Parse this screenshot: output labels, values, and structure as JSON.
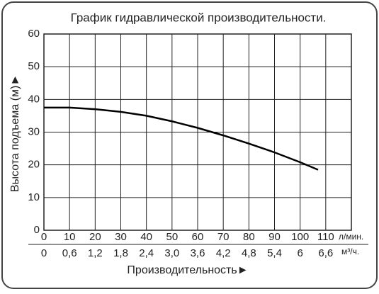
{
  "chart_data": {
    "type": "line",
    "title": "График гидравлической производительности.",
    "y_label": "Высота подъема (м)►",
    "x_label": "Производительность►",
    "x_unit": "л/мин.",
    "x2_unit": "м³/ч.",
    "xlim": [
      0,
      120
    ],
    "ylim": [
      0,
      60
    ],
    "xticks": [
      0,
      10,
      20,
      30,
      40,
      50,
      60,
      70,
      80,
      90,
      100,
      110
    ],
    "x2ticks": [
      0,
      {
        "value": 0.6,
        "label": "0,6"
      },
      {
        "value": 1.2,
        "label": "1,2"
      },
      {
        "value": 1.8,
        "label": "1,8"
      },
      {
        "value": 2.4,
        "label": "2,4"
      },
      {
        "value": 3.0,
        "label": "3,0"
      },
      {
        "value": 3.6,
        "label": "3,6"
      },
      {
        "value": 4.2,
        "label": "4,2"
      },
      {
        "value": 4.8,
        "label": "4,8"
      },
      {
        "value": 5.4,
        "label": "5,4"
      },
      6,
      {
        "value": 6.6,
        "label": "6,6"
      }
    ],
    "x2lim": [
      0,
      7.2
    ],
    "yticks": [
      0,
      10,
      20,
      30,
      40,
      50,
      60
    ],
    "grid": true,
    "series": [
      {
        "color": "#000000",
        "x": [
          0,
          10,
          20,
          30,
          40,
          50,
          60,
          70,
          80,
          90,
          100,
          107
        ],
        "values": [
          37.5,
          37.5,
          37,
          36.2,
          35,
          33.3,
          31.3,
          29,
          26.5,
          23.8,
          20.8,
          18.5
        ]
      }
    ]
  }
}
